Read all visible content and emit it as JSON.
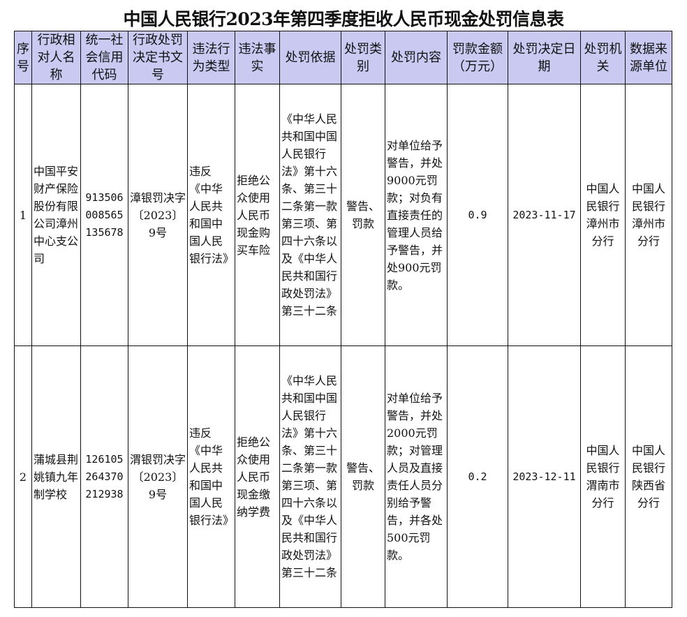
{
  "title": "中国人民银行2023年第四季度拒收人民币现金处罚信息表",
  "columns": [
    "序号",
    "行政相对人名称",
    "统一社会信用代码",
    "行政处罚决定书文号",
    "违法行为类型",
    "违法事实",
    "处罚依据",
    "处罚类别",
    "处罚内容",
    "罚款金额（万元）",
    "处罚决定日期",
    "处罚机关",
    "数据来源单位"
  ],
  "rows": [
    {
      "no": "1",
      "name": "中国平安财产保险股份有限公司漳州中心支公司",
      "credit_code": "913506008565135678",
      "doc_no": "漳银罚决字〔2023〕9号",
      "violation_type": "违反《中华人民共和国中国人民银行法》",
      "facts": "拒绝公众使用人民币现金购买车险",
      "basis": "《中华人民共和国中国人民银行法》第十六条、第三十二条第一款第三项、第四十六条以及《中华人民共和国行政处罚法》第三十二条",
      "category": "警告、罚款",
      "content": "对单位给予警告，并处9000元罚款；对负有直接责任的管理人员给予警告，并处900元罚款。",
      "amount": "0.9",
      "date": "2023-11-17",
      "authority": "中国人民银行漳州市分行",
      "source": "中国人民银行漳州市分行"
    },
    {
      "no": "2",
      "name": "蒲城县荆姚镇九年制学校",
      "credit_code": "126105264370212938",
      "doc_no": "渭银罚决字〔2023〕9号",
      "violation_type": "违反《中华人民共和国中国人民银行法》",
      "facts": "拒绝公众使用人民币现金缴纳学费",
      "basis": "《中华人民共和国中国人民银行法》第十六条、第三十二条第一款第三项、第四十六条以及《中华人民共和国行政处罚法》第三十二条",
      "category": "警告、罚款",
      "content": "对单位给予警告，并处2000元罚款；对管理人员及直接责任人员分别给予警告，并各处500元罚款。",
      "amount": "0.2",
      "date": "2023-12-11",
      "authority": "中国人民银行渭南市分行",
      "source": "中国人民银行陕西省分行"
    }
  ]
}
